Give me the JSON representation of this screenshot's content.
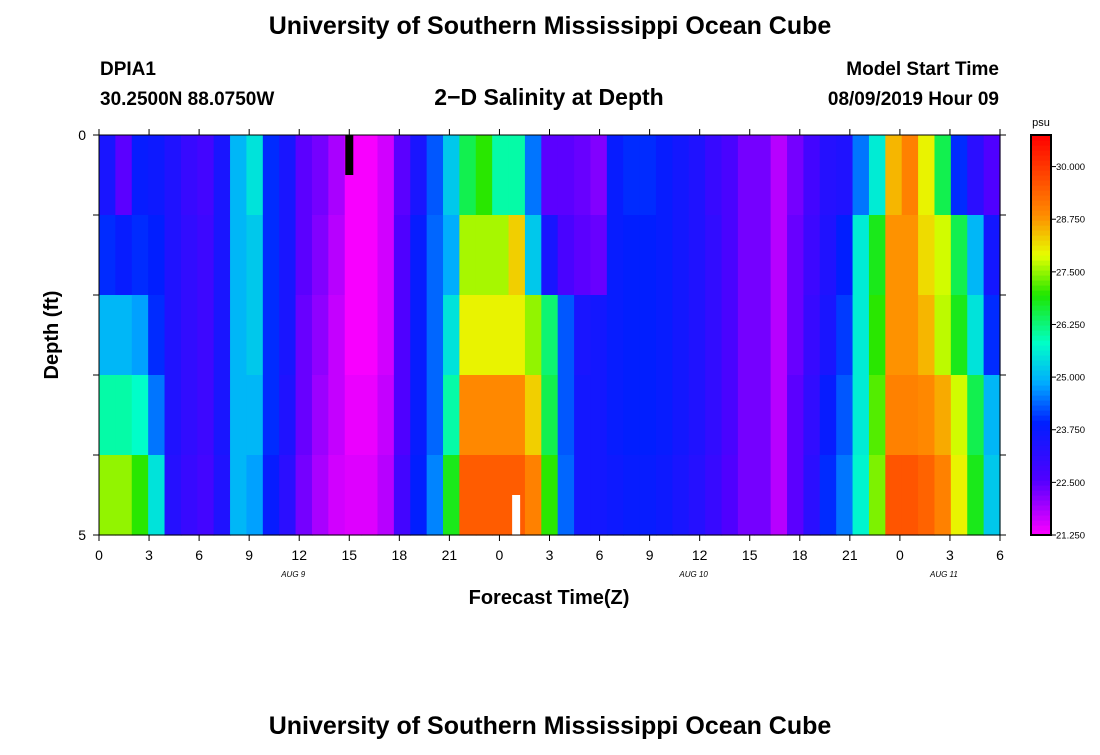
{
  "header": {
    "title": "University of Southern Mississippi Ocean Cube",
    "station_id": "DPIA1",
    "coords": "30.2500N 88.0750W",
    "subtitle": "2−D Salinity at Depth",
    "model_label": "Model Start Time",
    "model_time": "08/09/2019 Hour 09"
  },
  "footer": {
    "title": "University of Southern Mississippi Ocean Cube"
  },
  "chart_data": {
    "type": "heatmap",
    "title": "2-D Salinity at Depth",
    "xlabel": "Forecast Time(Z)",
    "ylabel": "Depth (ft)",
    "units": "psu",
    "xlim": [
      0,
      54
    ],
    "ylim": [
      0,
      5
    ],
    "x_ticks": [
      {
        "h": 0,
        "label": "0"
      },
      {
        "h": 3,
        "label": "3"
      },
      {
        "h": 6,
        "label": "6"
      },
      {
        "h": 9,
        "label": "9"
      },
      {
        "h": 12,
        "label": "12"
      },
      {
        "h": 15,
        "label": "15"
      },
      {
        "h": 18,
        "label": "18"
      },
      {
        "h": 21,
        "label": "21"
      },
      {
        "h": 24,
        "label": "0"
      },
      {
        "h": 27,
        "label": "3"
      },
      {
        "h": 30,
        "label": "6"
      },
      {
        "h": 33,
        "label": "9"
      },
      {
        "h": 36,
        "label": "12"
      },
      {
        "h": 39,
        "label": "15"
      },
      {
        "h": 42,
        "label": "18"
      },
      {
        "h": 45,
        "label": "21"
      },
      {
        "h": 48,
        "label": "0"
      },
      {
        "h": 51,
        "label": "3"
      },
      {
        "h": 54,
        "label": "6"
      }
    ],
    "y_ticks": [
      {
        "d": 0,
        "label": "0"
      },
      {
        "d": 1,
        "label": ""
      },
      {
        "d": 2,
        "label": ""
      },
      {
        "d": 3,
        "label": ""
      },
      {
        "d": 4,
        "label": ""
      },
      {
        "d": 5,
        "label": "5"
      }
    ],
    "date_labels": [
      {
        "h": 12,
        "label": "AUG 9"
      },
      {
        "h": 36,
        "label": "AUG 10"
      },
      {
        "h": 51,
        "label": "AUG 11"
      }
    ],
    "colorbar": {
      "min": 21.25,
      "max": 30.75,
      "ticks": [
        "30.000",
        "28.750",
        "27.500",
        "26.250",
        "25.000",
        "23.750",
        "22.500",
        "21.250"
      ]
    },
    "depth_rows": [
      0.5,
      1.5,
      2.5,
      3.5,
      4.5
    ],
    "hourly_salinity_psu": [
      [
        23.5,
        22.5,
        23.8,
        23.7,
        23.4,
        23.0,
        22.8,
        23.5,
        25.0,
        25.5,
        24.0,
        23.5,
        22.5,
        22.3,
        21.9,
        21.3,
        21.3,
        21.6,
        22.5,
        23.5,
        24.3,
        25.2,
        26.5,
        27.0,
        26.0,
        26.0,
        24.5,
        22.5,
        22.5,
        22.4,
        22.2,
        23.8,
        24.0,
        24.0,
        23.8,
        23.6,
        23.4,
        23.0,
        22.7,
        22.3,
        22.3,
        21.8,
        22.3,
        22.8,
        23.3,
        23.4,
        24.5,
        25.6,
        28.5,
        29.0,
        28.0,
        26.5,
        24.0,
        23.2,
        22.6
      ],
      [
        24.0,
        23.8,
        24.0,
        23.9,
        23.4,
        23.1,
        22.9,
        23.5,
        25.0,
        25.2,
        24.0,
        23.5,
        22.5,
        22.2,
        21.8,
        21.3,
        21.3,
        21.6,
        22.6,
        23.8,
        24.4,
        24.9,
        27.6,
        27.6,
        27.6,
        28.3,
        25.2,
        23.5,
        22.7,
        22.5,
        22.4,
        23.8,
        23.9,
        23.9,
        23.8,
        23.6,
        23.4,
        23.1,
        22.7,
        22.3,
        22.3,
        21.8,
        22.4,
        22.9,
        23.4,
        23.9,
        25.6,
        26.8,
        28.8,
        28.8,
        28.2,
        27.8,
        26.5,
        25.0,
        23.6
      ],
      [
        25.0,
        25.0,
        24.8,
        24.0,
        23.4,
        23.1,
        22.9,
        23.5,
        25.0,
        25.2,
        24.0,
        23.5,
        22.4,
        22.1,
        21.7,
        21.3,
        21.3,
        21.6,
        22.6,
        23.8,
        24.4,
        25.5,
        28.0,
        28.0,
        28.0,
        28.0,
        27.5,
        26.3,
        24.3,
        23.5,
        23.6,
        23.8,
        23.9,
        23.9,
        23.8,
        23.6,
        23.4,
        23.1,
        22.7,
        22.3,
        22.3,
        21.8,
        22.4,
        23.0,
        23.5,
        24.1,
        25.6,
        27.0,
        28.8,
        28.8,
        28.5,
        27.7,
        26.8,
        25.5,
        24.0
      ],
      [
        26.0,
        26.0,
        25.8,
        24.5,
        23.4,
        23.1,
        22.9,
        23.5,
        25.0,
        25.0,
        24.0,
        23.4,
        22.4,
        22.0,
        21.7,
        21.4,
        21.4,
        21.7,
        22.6,
        23.8,
        24.4,
        26.0,
        28.9,
        28.9,
        28.9,
        28.9,
        28.3,
        26.5,
        24.3,
        23.6,
        23.6,
        23.8,
        23.9,
        23.9,
        23.8,
        23.6,
        23.4,
        23.1,
        22.7,
        22.3,
        22.3,
        21.8,
        22.5,
        23.1,
        23.8,
        24.3,
        25.6,
        27.2,
        29.0,
        29.0,
        28.9,
        28.6,
        27.8,
        26.5,
        25.0
      ],
      [
        27.5,
        27.5,
        27.0,
        25.5,
        23.3,
        23.0,
        22.8,
        23.4,
        25.0,
        24.8,
        23.8,
        23.2,
        22.3,
        21.9,
        21.6,
        21.5,
        21.5,
        21.8,
        22.8,
        23.9,
        24.6,
        26.8,
        29.5,
        29.5,
        29.5,
        29.5,
        29.0,
        27.0,
        24.4,
        23.6,
        23.6,
        23.7,
        23.8,
        23.8,
        23.7,
        23.5,
        23.3,
        23.0,
        22.6,
        22.3,
        22.3,
        21.8,
        22.5,
        23.2,
        24.0,
        24.5,
        25.7,
        27.4,
        29.6,
        29.6,
        29.4,
        29.0,
        28.0,
        26.8,
        25.2
      ]
    ],
    "surface_layer_salinity_psu": [
      23.5,
      22.5,
      23.8,
      23.7,
      23.4,
      23.0,
      22.8,
      23.5,
      25.0,
      25.5,
      24.0,
      23.5,
      22.5,
      22.3,
      21.9,
      21.3,
      21.3,
      21.6,
      22.5,
      23.5,
      24.3,
      25.2,
      26.5,
      27.0,
      26.0,
      26.0,
      24.5,
      22.5,
      22.5,
      22.4,
      22.2,
      23.8,
      24.0,
      24.0,
      23.8,
      23.6,
      23.4,
      23.0,
      22.7,
      22.3,
      22.3,
      21.8,
      22.3,
      22.8,
      23.3,
      23.4,
      24.5,
      25.6,
      28.5,
      29.0,
      28.0,
      26.5,
      24.0,
      23.2,
      22.6
    ],
    "markers": [
      {
        "h": 15,
        "d0": 0,
        "d1": 0.5,
        "color": "#000000"
      },
      {
        "h": 25,
        "d0": 4.5,
        "d1": 5,
        "color": "#ffffff"
      }
    ]
  }
}
